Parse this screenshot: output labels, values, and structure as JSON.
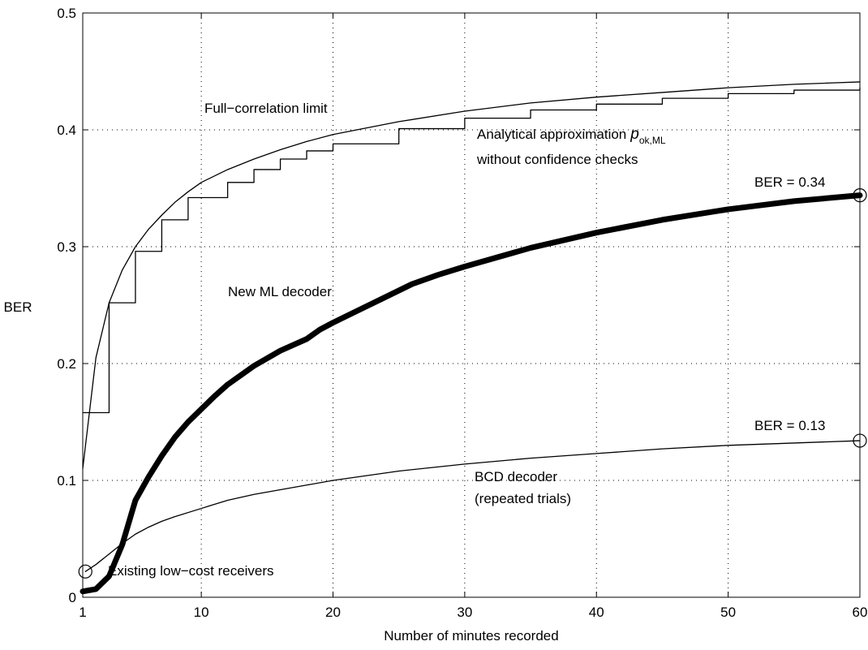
{
  "chart_data": {
    "type": "line",
    "title": "",
    "xlabel": "Number of minutes recorded",
    "ylabel": "BER",
    "xlim": [
      1,
      60
    ],
    "ylim": [
      0,
      0.5
    ],
    "xticks": [
      1,
      10,
      20,
      30,
      40,
      50,
      60
    ],
    "yticks": [
      0,
      0.1,
      0.2,
      0.3,
      0.4,
      0.5
    ],
    "xtick_labels": [
      "1",
      "10",
      "20",
      "30",
      "40",
      "50",
      "60"
    ],
    "ytick_labels": [
      "0",
      "0.1",
      "0.2",
      "0.3",
      "0.4",
      "0.5"
    ],
    "grid": true,
    "grid_style": "dotted",
    "legend": "none",
    "series": [
      {
        "style": "thin",
        "x": [
          1,
          2,
          3,
          4,
          5,
          6,
          7,
          8,
          9,
          10,
          12,
          14,
          16,
          18,
          20,
          25,
          30,
          35,
          40,
          45,
          50,
          55,
          60
        ],
        "y": [
          0.11,
          0.205,
          0.252,
          0.28,
          0.3,
          0.315,
          0.327,
          0.338,
          0.347,
          0.355,
          0.366,
          0.375,
          0.383,
          0.39,
          0.396,
          0.407,
          0.416,
          0.423,
          0.428,
          0.432,
          0.436,
          0.439,
          0.441
        ]
      },
      {
        "style": "thin-stepped",
        "x": [
          1,
          2,
          3,
          4,
          5,
          6,
          7,
          8,
          9,
          10,
          12,
          14,
          16,
          18,
          20,
          25,
          30,
          35,
          40,
          45,
          50,
          55,
          60
        ],
        "y": [
          0.158,
          0.158,
          0.252,
          0.252,
          0.296,
          0.296,
          0.323,
          0.323,
          0.342,
          0.342,
          0.355,
          0.366,
          0.375,
          0.382,
          0.388,
          0.401,
          0.41,
          0.417,
          0.422,
          0.427,
          0.431,
          0.434,
          0.436
        ]
      },
      {
        "style": "thick",
        "x": [
          1,
          2,
          3,
          4,
          5,
          6,
          7,
          8,
          9,
          10,
          11,
          12,
          14,
          16,
          18,
          19,
          20,
          22,
          24,
          26,
          28,
          30,
          35,
          40,
          45,
          50,
          55,
          60
        ],
        "y": [
          0.005,
          0.007,
          0.018,
          0.045,
          0.083,
          0.103,
          0.121,
          0.137,
          0.15,
          0.161,
          0.172,
          0.182,
          0.198,
          0.211,
          0.221,
          0.229,
          0.235,
          0.246,
          0.257,
          0.268,
          0.276,
          0.283,
          0.299,
          0.312,
          0.323,
          0.332,
          0.339,
          0.344
        ]
      },
      {
        "style": "thin",
        "x": [
          1.2,
          2,
          3,
          4,
          5,
          6,
          7,
          8,
          10,
          12,
          14,
          16,
          18,
          20,
          25,
          30,
          35,
          40,
          45,
          50,
          55,
          60
        ],
        "y": [
          0.022,
          0.028,
          0.037,
          0.046,
          0.054,
          0.06,
          0.065,
          0.069,
          0.076,
          0.083,
          0.088,
          0.092,
          0.096,
          0.1,
          0.108,
          0.114,
          0.119,
          0.123,
          0.127,
          0.13,
          0.132,
          0.134
        ]
      }
    ],
    "markers": [
      {
        "x": 1.2,
        "y": 0.022
      },
      {
        "x": 60,
        "y": 0.344
      },
      {
        "x": 60,
        "y": 0.134
      }
    ],
    "annotations": {
      "full_correlation": "Full−correlation limit",
      "analytical_line1": "Analytical approximation",
      "analytical_symbol": "p",
      "analytical_subscript": "ok,ML",
      "analytical_line2": "without confidence checks",
      "ber_high": "BER = 0.34",
      "ml_decoder": "New ML decoder",
      "ber_low": "BER = 0.13",
      "bcd_line1": "BCD decoder",
      "bcd_line2": "(repeated trials)",
      "existing": "Existing low−cost receivers"
    }
  }
}
